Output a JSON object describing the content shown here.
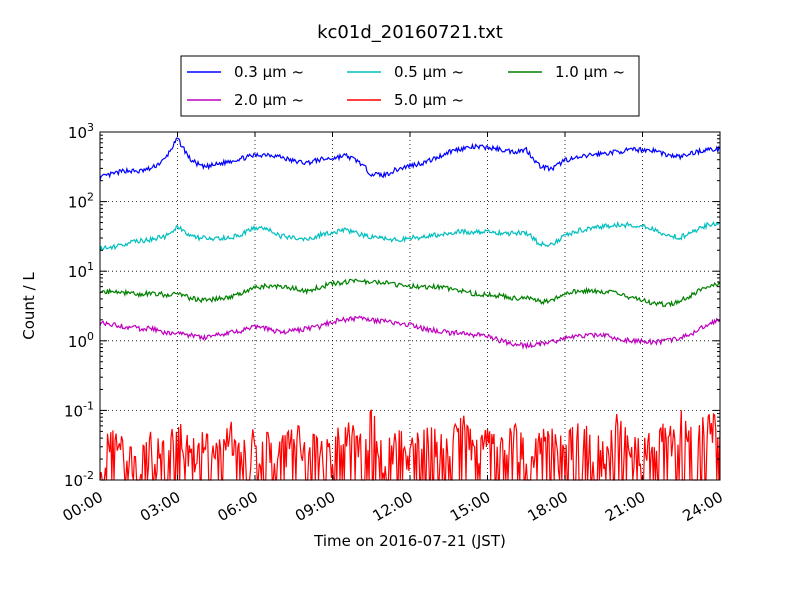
{
  "chart_data": {
    "type": "line",
    "title": "kc01d_20160721.txt",
    "xlabel": "Time on 2016-07-21 (JST)",
    "ylabel": "Count / L",
    "yscale": "log",
    "ylim": [
      0.01,
      1000
    ],
    "xlim": [
      "00:00",
      "24:00"
    ],
    "x_unit": "hour of day",
    "x_tick_labels": [
      "00:00",
      "03:00",
      "06:00",
      "09:00",
      "12:00",
      "15:00",
      "18:00",
      "21:00",
      "24:00"
    ],
    "y_tick_labels": [
      {
        "base": "10",
        "exp": "-2"
      },
      {
        "base": "10",
        "exp": "-1"
      },
      {
        "base": "10",
        "exp": "0"
      },
      {
        "base": "10",
        "exp": "1"
      },
      {
        "base": "10",
        "exp": "2"
      },
      {
        "base": "10",
        "exp": "3"
      }
    ],
    "grid": true,
    "legend_position": "top-center",
    "x": [
      0,
      0.5,
      1,
      1.5,
      2,
      2.5,
      3,
      3.5,
      4,
      4.5,
      5,
      5.5,
      6,
      6.5,
      7,
      7.5,
      8,
      8.5,
      9,
      9.5,
      10,
      10.5,
      11,
      11.5,
      12,
      12.5,
      13,
      13.5,
      14,
      14.5,
      15,
      15.5,
      16,
      16.5,
      17,
      17.5,
      18,
      18.5,
      19,
      19.5,
      20,
      20.5,
      21,
      21.5,
      22,
      22.5,
      23,
      23.5,
      24
    ],
    "series": [
      {
        "name": "0.3 μm ~",
        "color": "#0000ff",
        "values": [
          220,
          250,
          280,
          270,
          300,
          400,
          800,
          400,
          310,
          340,
          380,
          420,
          460,
          480,
          440,
          380,
          360,
          400,
          420,
          460,
          380,
          250,
          240,
          290,
          330,
          360,
          420,
          520,
          580,
          610,
          600,
          560,
          520,
          560,
          330,
          290,
          400,
          420,
          470,
          490,
          520,
          550,
          560,
          540,
          460,
          440,
          510,
          560,
          560
        ]
      },
      {
        "name": "0.5 μm ~",
        "color": "#00bfbf",
        "values": [
          21,
          22,
          25,
          27,
          29,
          31,
          44,
          31,
          30,
          29,
          30,
          34,
          42,
          40,
          32,
          30,
          29,
          33,
          36,
          40,
          34,
          31,
          30,
          28,
          30,
          31,
          33,
          36,
          37,
          36,
          38,
          35,
          35,
          36,
          25,
          24,
          33,
          38,
          42,
          44,
          46,
          46,
          44,
          40,
          32,
          31,
          38,
          46,
          50
        ]
      },
      {
        "name": "1.0 μm ~",
        "color": "#008000",
        "values": [
          5.2,
          5.0,
          4.9,
          4.7,
          4.8,
          4.6,
          4.7,
          4.1,
          3.8,
          4.0,
          4.3,
          4.8,
          5.8,
          6.2,
          6.0,
          5.7,
          5.2,
          5.9,
          6.6,
          7.0,
          7.2,
          7.1,
          6.8,
          6.4,
          6.2,
          5.8,
          6.0,
          5.6,
          5.3,
          4.7,
          4.6,
          4.4,
          4.1,
          4.1,
          3.7,
          3.7,
          4.9,
          5.2,
          5.3,
          5.1,
          4.9,
          4.2,
          3.8,
          3.4,
          3.3,
          3.8,
          4.8,
          5.9,
          6.5
        ]
      },
      {
        "name": "2.0 μm ~",
        "color": "#bf00bf",
        "values": [
          1.8,
          1.7,
          1.6,
          1.5,
          1.5,
          1.3,
          1.3,
          1.2,
          1.1,
          1.2,
          1.3,
          1.4,
          1.6,
          1.5,
          1.3,
          1.4,
          1.5,
          1.6,
          1.9,
          2.0,
          2.1,
          2.0,
          1.9,
          1.8,
          1.7,
          1.5,
          1.4,
          1.3,
          1.3,
          1.2,
          1.2,
          1.0,
          0.9,
          0.85,
          0.9,
          0.95,
          1.1,
          1.2,
          1.2,
          1.2,
          1.1,
          1.0,
          1.0,
          0.95,
          1.0,
          1.1,
          1.3,
          1.7,
          2.0
        ]
      },
      {
        "name": "5.0 μm ~",
        "color": "#ff0000",
        "values": [
          0.02,
          0.03,
          0.02,
          0.01,
          0.03,
          0.02,
          0.04,
          0.02,
          0.03,
          0.02,
          0.04,
          0.02,
          0.03,
          0.03,
          0.02,
          0.04,
          0.02,
          0.03,
          0.02,
          0.05,
          0.02,
          0.06,
          0.02,
          0.03,
          0.02,
          0.04,
          0.03,
          0.02,
          0.05,
          0.02,
          0.03,
          0.02,
          0.04,
          0.02,
          0.03,
          0.03,
          0.02,
          0.04,
          0.03,
          0.02,
          0.05,
          0.03,
          0.02,
          0.04,
          0.03,
          0.06,
          0.04,
          0.05,
          0.05
        ]
      }
    ]
  }
}
